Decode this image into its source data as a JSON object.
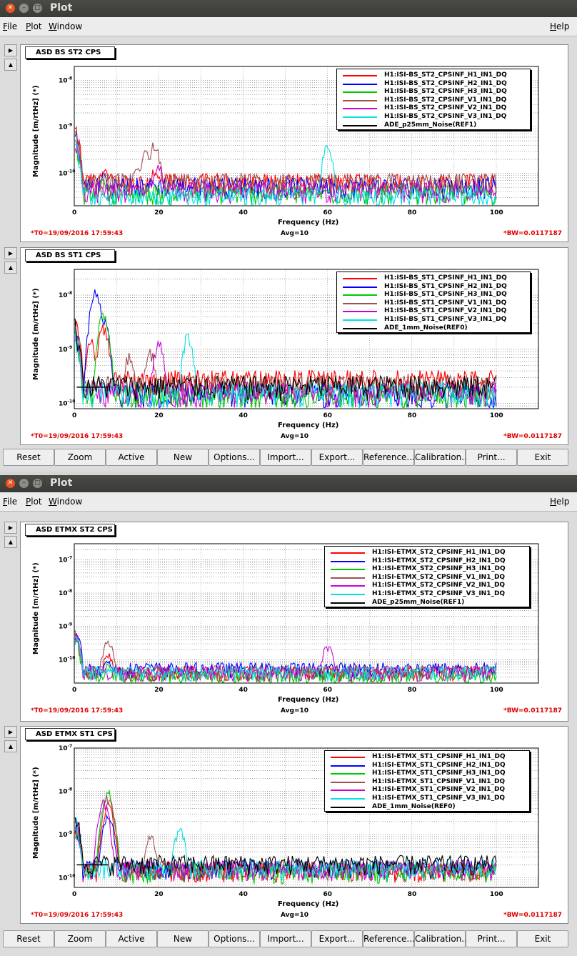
{
  "window1": {
    "title": "Plot",
    "menu": {
      "file": "File",
      "plot": "Plot",
      "window": "Window",
      "help": "Help"
    }
  },
  "window2": {
    "title": "Plot",
    "menu": {
      "file": "File",
      "plot": "Plot",
      "window": "Window",
      "help": "Help"
    }
  },
  "buttons": [
    "Reset",
    "Zoom",
    "Active",
    "New",
    "Options...",
    "Import...",
    "Export...",
    "Reference...",
    "Calibration...",
    "Print...",
    "Exit"
  ],
  "common": {
    "xlabel": "Frequency (Hz)",
    "ylabel": "Magnitude [m/rtHz] (*)",
    "t0": "*T0=19/09/2016 17:59:43",
    "avg": "Avg=10",
    "bw": "*BW=0.0117187",
    "xticks": [
      "0",
      "20",
      "40",
      "60",
      "80",
      "100"
    ]
  },
  "colors": {
    "H1": "#ff0000",
    "H2": "#0000ff",
    "H3": "#00c800",
    "V1": "#a05050",
    "V2": "#d000d0",
    "V3": "#00e0e0",
    "REF": "#000000"
  },
  "chart_data": [
    {
      "type": "line",
      "title": "ASD BS ST2 CPS",
      "xlabel": "Frequency (Hz)",
      "ylabel": "Magnitude [m/rtHz] (*)",
      "xlim": [
        0,
        100
      ],
      "ylim": [
        2e-11,
        2e-08
      ],
      "yscale": "log",
      "yticks": [
        "10^-8",
        "10^-9",
        "10^-10"
      ],
      "legend": "top-right",
      "series": [
        {
          "name": "H1:ISI-BS_ST2_CPSINF_H1_IN1_DQ",
          "color": "#ff0000",
          "base": 6e-11,
          "peaks": [
            [
              7,
              1.5e-10
            ],
            [
              19,
              1.2e-10
            ]
          ]
        },
        {
          "name": "H1:ISI-BS_ST2_CPSINF_H2_IN1_DQ",
          "color": "#0000ff",
          "base": 5e-11,
          "peaks": [
            [
              7,
              1e-10
            ]
          ]
        },
        {
          "name": "H1:ISI-BS_ST2_CPSINF_H3_IN1_DQ",
          "color": "#00c800",
          "base": 3.5e-11,
          "peaks": [
            [
              7,
              8e-11
            ]
          ]
        },
        {
          "name": "H1:ISI-BS_ST2_CPSINF_V1_IN1_DQ",
          "color": "#a05050",
          "base": 6e-11,
          "peaks": [
            [
              15,
              1.3e-10
            ],
            [
              19,
              5e-10
            ],
            [
              17,
              3e-10
            ]
          ]
        },
        {
          "name": "H1:ISI-BS_ST2_CPSINF_V2_IN1_DQ",
          "color": "#d000d0",
          "base": 4e-11,
          "peaks": [
            [
              20,
              1.5e-10
            ]
          ]
        },
        {
          "name": "H1:ISI-BS_ST2_CPSINF_V3_IN1_DQ",
          "color": "#00e0e0",
          "base": 3e-11,
          "peaks": [
            [
              60,
              4e-10
            ]
          ]
        },
        {
          "name": "ADE_p25mm_Noise(REF1)",
          "color": "#000000",
          "base": 0,
          "peaks": []
        }
      ]
    },
    {
      "type": "line",
      "title": "ASD BS ST1 CPS",
      "xlabel": "Frequency (Hz)",
      "ylabel": "Magnitude [m/rtHz] (*)",
      "xlim": [
        0,
        100
      ],
      "ylim": [
        8e-11,
        3e-08
      ],
      "yscale": "log",
      "yticks": [
        "10^-8",
        "10^-9",
        "10^-10"
      ],
      "legend": "top-right",
      "series": [
        {
          "name": "H1:ISI-BS_ST1_CPSINF_H1_IN1_DQ",
          "color": "#ff0000",
          "base": 2.5e-10,
          "peaks": [
            [
              7,
              3e-09
            ],
            [
              4,
              1.5e-09
            ]
          ]
        },
        {
          "name": "H1:ISI-BS_ST1_CPSINF_H2_IN1_DQ",
          "color": "#0000ff",
          "base": 1.4e-10,
          "peaks": [
            [
              5,
              1.2e-08
            ],
            [
              7,
              4e-09
            ]
          ]
        },
        {
          "name": "H1:ISI-BS_ST1_CPSINF_H3_IN1_DQ",
          "color": "#00c800",
          "base": 1.3e-10,
          "peaks": [
            [
              7,
              5e-09
            ]
          ]
        },
        {
          "name": "H1:ISI-BS_ST1_CPSINF_V1_IN1_DQ",
          "color": "#a05050",
          "base": 2e-10,
          "peaks": [
            [
              18,
              1e-09
            ],
            [
              13,
              8e-10
            ]
          ]
        },
        {
          "name": "H1:ISI-BS_ST1_CPSINF_V2_IN1_DQ",
          "color": "#d000d0",
          "base": 1.5e-10,
          "peaks": [
            [
              20,
              1.5e-09
            ]
          ]
        },
        {
          "name": "H1:ISI-BS_ST1_CPSINF_V3_IN1_DQ",
          "color": "#00e0e0",
          "base": 1.5e-10,
          "peaks": [
            [
              27,
              2e-09
            ]
          ]
        },
        {
          "name": "ADE_1mm_Noise(REF0)",
          "color": "#000000",
          "base": 2e-10,
          "peaks": []
        }
      ]
    },
    {
      "type": "line",
      "title": "ASD ETMX ST2 CPS",
      "xlabel": "Frequency (Hz)",
      "ylabel": "Magnitude [m/rtHz] (*)",
      "xlim": [
        0,
        100
      ],
      "ylim": [
        2e-11,
        3e-07
      ],
      "yscale": "log",
      "yticks": [
        "10^-7",
        "10^-8",
        "10^-9",
        "10^-10"
      ],
      "legend": "top-right",
      "series": [
        {
          "name": "H1:ISI-ETMX_ST2_CPSINF_H1_IN1_DQ",
          "color": "#ff0000",
          "base": 4e-11,
          "peaks": [
            [
              8,
              1.6e-10
            ]
          ]
        },
        {
          "name": "H1:ISI-ETMX_ST2_CPSINF_H2_IN1_DQ",
          "color": "#0000ff",
          "base": 5e-11,
          "peaks": [
            [
              8,
              1e-10
            ]
          ]
        },
        {
          "name": "H1:ISI-ETMX_ST2_CPSINF_H3_IN1_DQ",
          "color": "#00c800",
          "base": 3e-11,
          "peaks": [
            [
              8,
              8e-11
            ]
          ]
        },
        {
          "name": "H1:ISI-ETMX_ST2_CPSINF_V1_IN1_DQ",
          "color": "#a05050",
          "base": 4e-11,
          "peaks": [
            [
              8,
              4e-10
            ]
          ]
        },
        {
          "name": "H1:ISI-ETMX_ST2_CPSINF_V2_IN1_DQ",
          "color": "#d000d0",
          "base": 4e-11,
          "peaks": [
            [
              60,
              3e-10
            ]
          ]
        },
        {
          "name": "H1:ISI-ETMX_ST2_CPSINF_V3_IN1_DQ",
          "color": "#00e0e0",
          "base": 4e-11,
          "peaks": []
        },
        {
          "name": "ADE_p25mm_Noise(REF1)",
          "color": "#000000",
          "base": 0,
          "peaks": []
        }
      ]
    },
    {
      "type": "line",
      "title": "ASD ETMX ST1 CPS",
      "xlabel": "Frequency (Hz)",
      "ylabel": "Magnitude [m/rtHz] (*)",
      "xlim": [
        0,
        100
      ],
      "ylim": [
        6e-11,
        1e-07
      ],
      "yscale": "log",
      "yticks": [
        "10^-7",
        "10^-8",
        "10^-9",
        "10^-10"
      ],
      "legend": "top-right",
      "series": [
        {
          "name": "H1:ISI-ETMX_ST1_CPSINF_H1_IN1_DQ",
          "color": "#ff0000",
          "base": 1.4e-10,
          "peaks": [
            [
              8,
              5e-09
            ]
          ]
        },
        {
          "name": "H1:ISI-ETMX_ST1_CPSINF_H2_IN1_DQ",
          "color": "#0000ff",
          "base": 1.6e-10,
          "peaks": [
            [
              8,
              3e-09
            ]
          ]
        },
        {
          "name": "H1:ISI-ETMX_ST1_CPSINF_H3_IN1_DQ",
          "color": "#00c800",
          "base": 1.3e-10,
          "peaks": [
            [
              8,
              1e-08
            ]
          ]
        },
        {
          "name": "H1:ISI-ETMX_ST1_CPSINF_V1_IN1_DQ",
          "color": "#a05050",
          "base": 1.5e-10,
          "peaks": [
            [
              8,
              8e-09
            ],
            [
              18,
              1e-09
            ]
          ]
        },
        {
          "name": "H1:ISI-ETMX_ST1_CPSINF_V2_IN1_DQ",
          "color": "#d000d0",
          "base": 1.5e-10,
          "peaks": [
            [
              7,
              6e-09
            ]
          ]
        },
        {
          "name": "H1:ISI-ETMX_ST1_CPSINF_V3_IN1_DQ",
          "color": "#00e0e0",
          "base": 1.6e-10,
          "peaks": [
            [
              25,
              1.5e-09
            ]
          ]
        },
        {
          "name": "ADE_1mm_Noise(REF0)",
          "color": "#000000",
          "base": 2e-10,
          "peaks": []
        }
      ]
    }
  ]
}
